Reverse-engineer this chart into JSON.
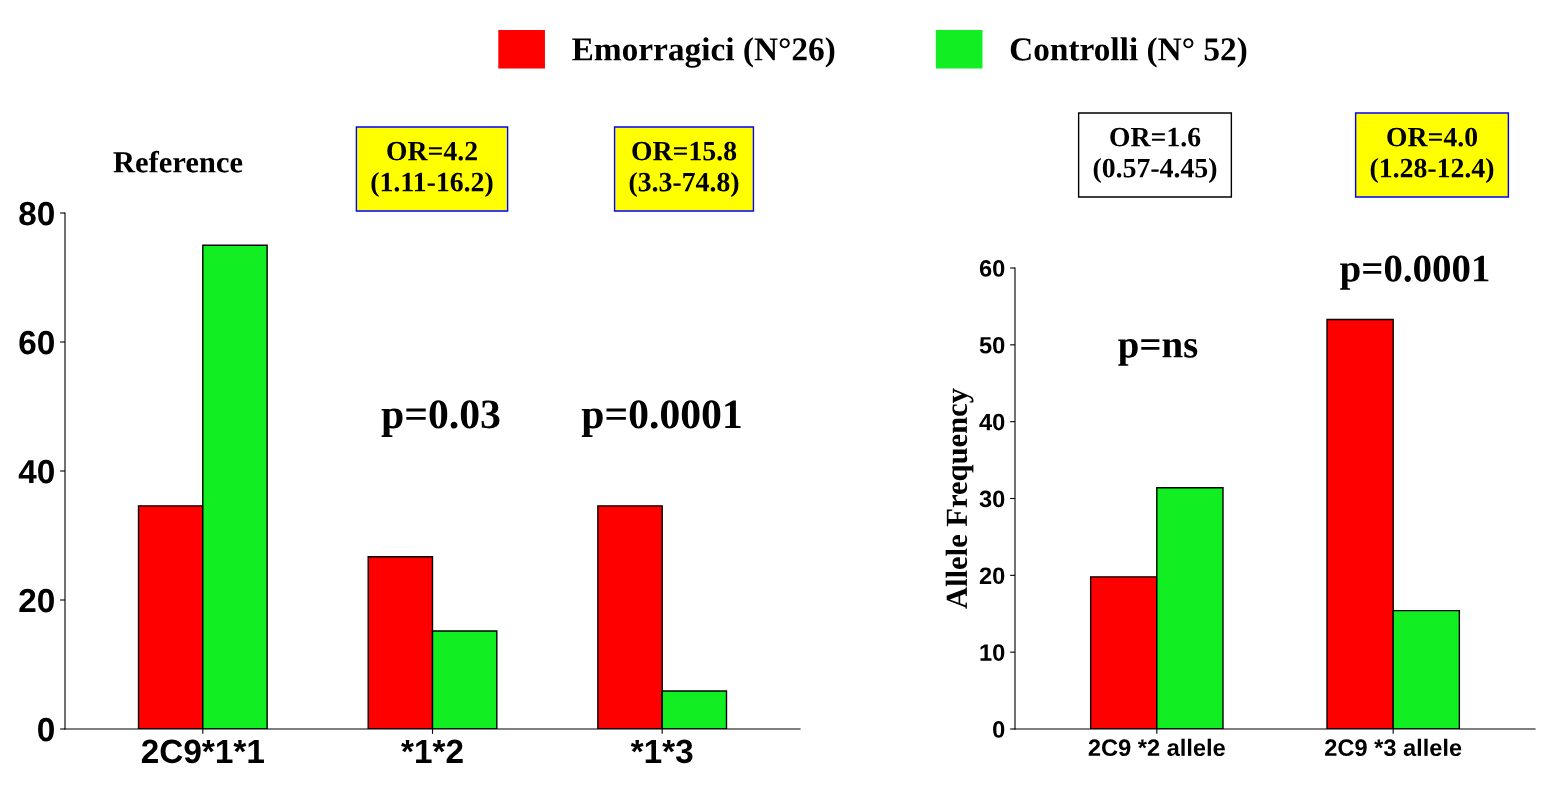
{
  "chart_data": [
    {
      "type": "bar",
      "categories": [
        "2C9*1*1",
        "*1*2",
        "*1*3"
      ],
      "ylim": [
        0,
        80
      ],
      "yticks": [
        0,
        20,
        40,
        60,
        80
      ],
      "grid": false,
      "legend": "top",
      "series": [
        {
          "name": "Emorragici (N°26)",
          "color": "#ff0000",
          "values": [
            34.6,
            26.7,
            34.6
          ]
        },
        {
          "name": "Controlli (N° 52)",
          "color": "#11ee22",
          "values": [
            75.0,
            15.2,
            5.9
          ]
        }
      ],
      "annotations": [
        "Reference",
        "OR=4.2\n(1.11-16.2)",
        "OR=15.8\n(3.3-74.8)",
        "p=0.03",
        "p=0.0001"
      ]
    },
    {
      "type": "bar",
      "categories": [
        "2C9 *2 allele",
        "2C9 *3 allele"
      ],
      "ylim": [
        0,
        60
      ],
      "yticks": [
        0,
        10,
        20,
        30,
        40,
        50,
        60
      ],
      "grid": false,
      "ylabel": "Allele Frequency",
      "series": [
        {
          "color": "#ff0000",
          "values": [
            19.8,
            53.3
          ]
        },
        {
          "color": "#11ee22",
          "values": [
            31.4,
            15.4
          ]
        }
      ],
      "annotations": [
        "OR=1.6\n(0.57-4.45)",
        "OR=4.0\n(1.28-12.4)",
        "p=ns",
        "p=0.0001"
      ]
    }
  ]
}
